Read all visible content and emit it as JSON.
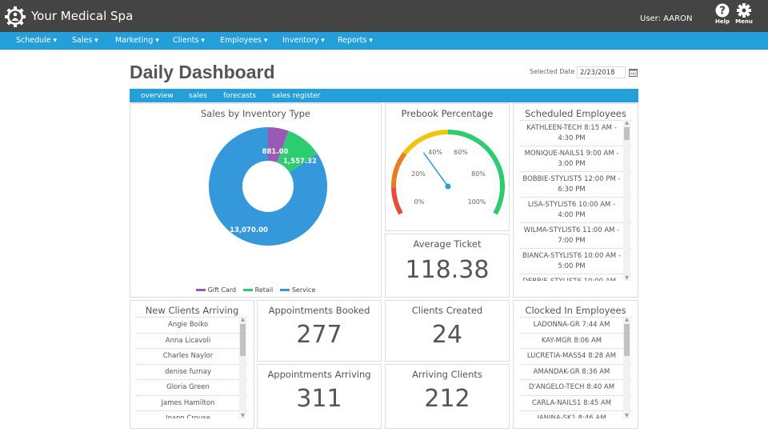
{
  "header": {
    "app_title": "Your Medical Spa",
    "user": "User: AARON",
    "help_label": "Help",
    "menu_label": "Menu"
  },
  "nav": [
    "Schedule",
    "Sales",
    "Marketing",
    "Clients",
    "Employees",
    "Inventory",
    "Reports"
  ],
  "page": {
    "title": "Daily Dashboard",
    "selected_date_label": "Selected Date",
    "selected_date": "2/23/2018"
  },
  "tabs": [
    "overview",
    "sales",
    "forecasts",
    "sales register"
  ],
  "sales_by_inventory": {
    "title": "Sales by Inventory Type"
  },
  "chart_data": {
    "type": "pie",
    "donut": true,
    "categories": [
      "Gift Card",
      "Retail",
      "Service"
    ],
    "values": [
      881.0,
      1557.32,
      13070.0
    ],
    "labels": [
      "881.00",
      "1,557.32",
      "13,070.00"
    ],
    "colors": [
      "#9b59b6",
      "#2ecc71",
      "#3498db"
    ],
    "legend": "bottom"
  },
  "prebook": {
    "title": "Prebook Percentage",
    "value_percent": 35,
    "ticks": [
      "0%",
      "20%",
      "40%",
      "60%",
      "80%",
      "100%"
    ],
    "bands": [
      {
        "to": 12,
        "color": "#e74c3c"
      },
      {
        "to": 28,
        "color": "#e67e22"
      },
      {
        "to": 50,
        "color": "#f1c40f"
      },
      {
        "to": 100,
        "color": "#2ecc71"
      }
    ]
  },
  "average_ticket": {
    "title": "Average Ticket",
    "value": "118.38"
  },
  "scheduled_employees": {
    "title": "Scheduled Employees",
    "items": [
      "KATHLEEN-TECH 8:15 AM - 4:30 PM",
      "MONIQUE-NAILS1 9:00 AM - 3:00 PM",
      "BOBBIE-STYLIST5 12:00 PM - 6:30 PM",
      "LISA-STYLIST6 10:00 AM - 4:00 PM",
      "WILMA-STYLIST6 11:00 AM - 7:00 PM",
      "BIANCA-STYLIST6 10:00 AM - 5:00 PM",
      "DEBBIE-STYLIST6 10:00 AM -"
    ]
  },
  "new_clients": {
    "title": "New Clients Arriving",
    "items": [
      "Angie Boiko",
      "Anna Licavoli",
      "Charles Naylor",
      "denise furnay",
      "Gloria  Green",
      "James Hamilton",
      "Joann Crouse"
    ]
  },
  "appointments_booked": {
    "title": "Appointments Booked",
    "value": "277"
  },
  "appointments_arriving": {
    "title": "Appointments Arriving",
    "value": "311"
  },
  "clients_created": {
    "title": "Clients Created",
    "value": "24"
  },
  "arriving_clients": {
    "title": "Arriving Clients",
    "value": "212"
  },
  "clocked_in": {
    "title": "Clocked In Employees",
    "items": [
      "LADONNA-GR 7:44 AM",
      "KAY-MGR 8:06 AM",
      "LUCRETIA-MASS4 8:28 AM",
      "AMANDAK-GR 8:36 AM",
      "D'ANGELO-TECH 8:40 AM",
      "CARLA-NAILS1 8:45 AM",
      "JANINA-SK1 8:46 AM"
    ]
  }
}
